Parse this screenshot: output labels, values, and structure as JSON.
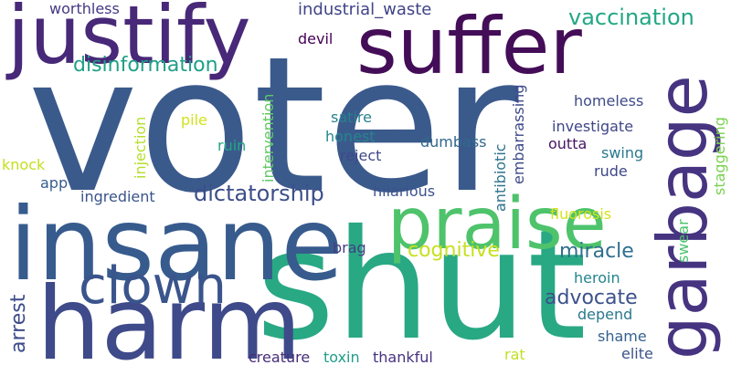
{
  "background": "#ffffff",
  "words": [
    {
      "text": "voter",
      "color": "#3b5a8c"
    },
    {
      "text": "shut",
      "color": "#29a884"
    },
    {
      "text": "insane",
      "color": "#375b8d"
    },
    {
      "text": "harm",
      "color": "#3e4a89"
    },
    {
      "text": "justify",
      "color": "#482878"
    },
    {
      "text": "suffer",
      "color": "#440d57"
    },
    {
      "text": "praise",
      "color": "#4ec36b"
    },
    {
      "text": "garbage",
      "color": "#463480"
    },
    {
      "text": "clown",
      "color": "#3a548c"
    },
    {
      "text": "dictatorship",
      "color": "#3d4e8a"
    },
    {
      "text": "vaccination",
      "color": "#22a785"
    },
    {
      "text": "disinformation",
      "color": "#1fa088"
    },
    {
      "text": "cognitive",
      "color": "#c8e020"
    },
    {
      "text": "miracle",
      "color": "#2e6f8e"
    },
    {
      "text": "advocate",
      "color": "#3b518b"
    },
    {
      "text": "arrest",
      "color": "#3e4c8a"
    },
    {
      "text": "industrial_waste",
      "color": "#414487"
    },
    {
      "text": "worthless",
      "color": "#453882"
    },
    {
      "text": "devil",
      "color": "#440154"
    },
    {
      "text": "homeless",
      "color": "#3e4a89"
    },
    {
      "text": "investigate",
      "color": "#404688"
    },
    {
      "text": "outta",
      "color": "#471365"
    },
    {
      "text": "satire",
      "color": "#26828e"
    },
    {
      "text": "honest",
      "color": "#24868e"
    },
    {
      "text": "dumbass",
      "color": "#31688e"
    },
    {
      "text": "reject",
      "color": "#3f4889"
    },
    {
      "text": "ingredient",
      "color": "#3a548c"
    },
    {
      "text": "hilarious",
      "color": "#3b528b"
    },
    {
      "text": "fluorosis",
      "color": "#d5e21a"
    },
    {
      "text": "pile",
      "color": "#d2e21b"
    },
    {
      "text": "ruin",
      "color": "#22a785"
    },
    {
      "text": "knock",
      "color": "#c5e021"
    },
    {
      "text": "app",
      "color": "#365c8d"
    },
    {
      "text": "swing",
      "color": "#2a788e"
    },
    {
      "text": "rude",
      "color": "#3f4788"
    },
    {
      "text": "brag",
      "color": "#433e85"
    },
    {
      "text": "heroin",
      "color": "#25848e"
    },
    {
      "text": "depend",
      "color": "#2a788e"
    },
    {
      "text": "shame",
      "color": "#34618d"
    },
    {
      "text": "elite",
      "color": "#3b528b"
    },
    {
      "text": "creature",
      "color": "#472c7a"
    },
    {
      "text": "toxin",
      "color": "#1f9e89"
    },
    {
      "text": "thankful",
      "color": "#46327e"
    },
    {
      "text": "rat",
      "color": "#c2df23"
    },
    {
      "text": "injection",
      "color": "#b5de2b"
    },
    {
      "text": "intervention",
      "color": "#5ec962"
    },
    {
      "text": "embarrassing",
      "color": "#3e4989"
    },
    {
      "text": "antibiotic",
      "color": "#2c738e"
    },
    {
      "text": "swear",
      "color": "#4ac16d"
    },
    {
      "text": "staggering",
      "color": "#7ad151"
    }
  ]
}
